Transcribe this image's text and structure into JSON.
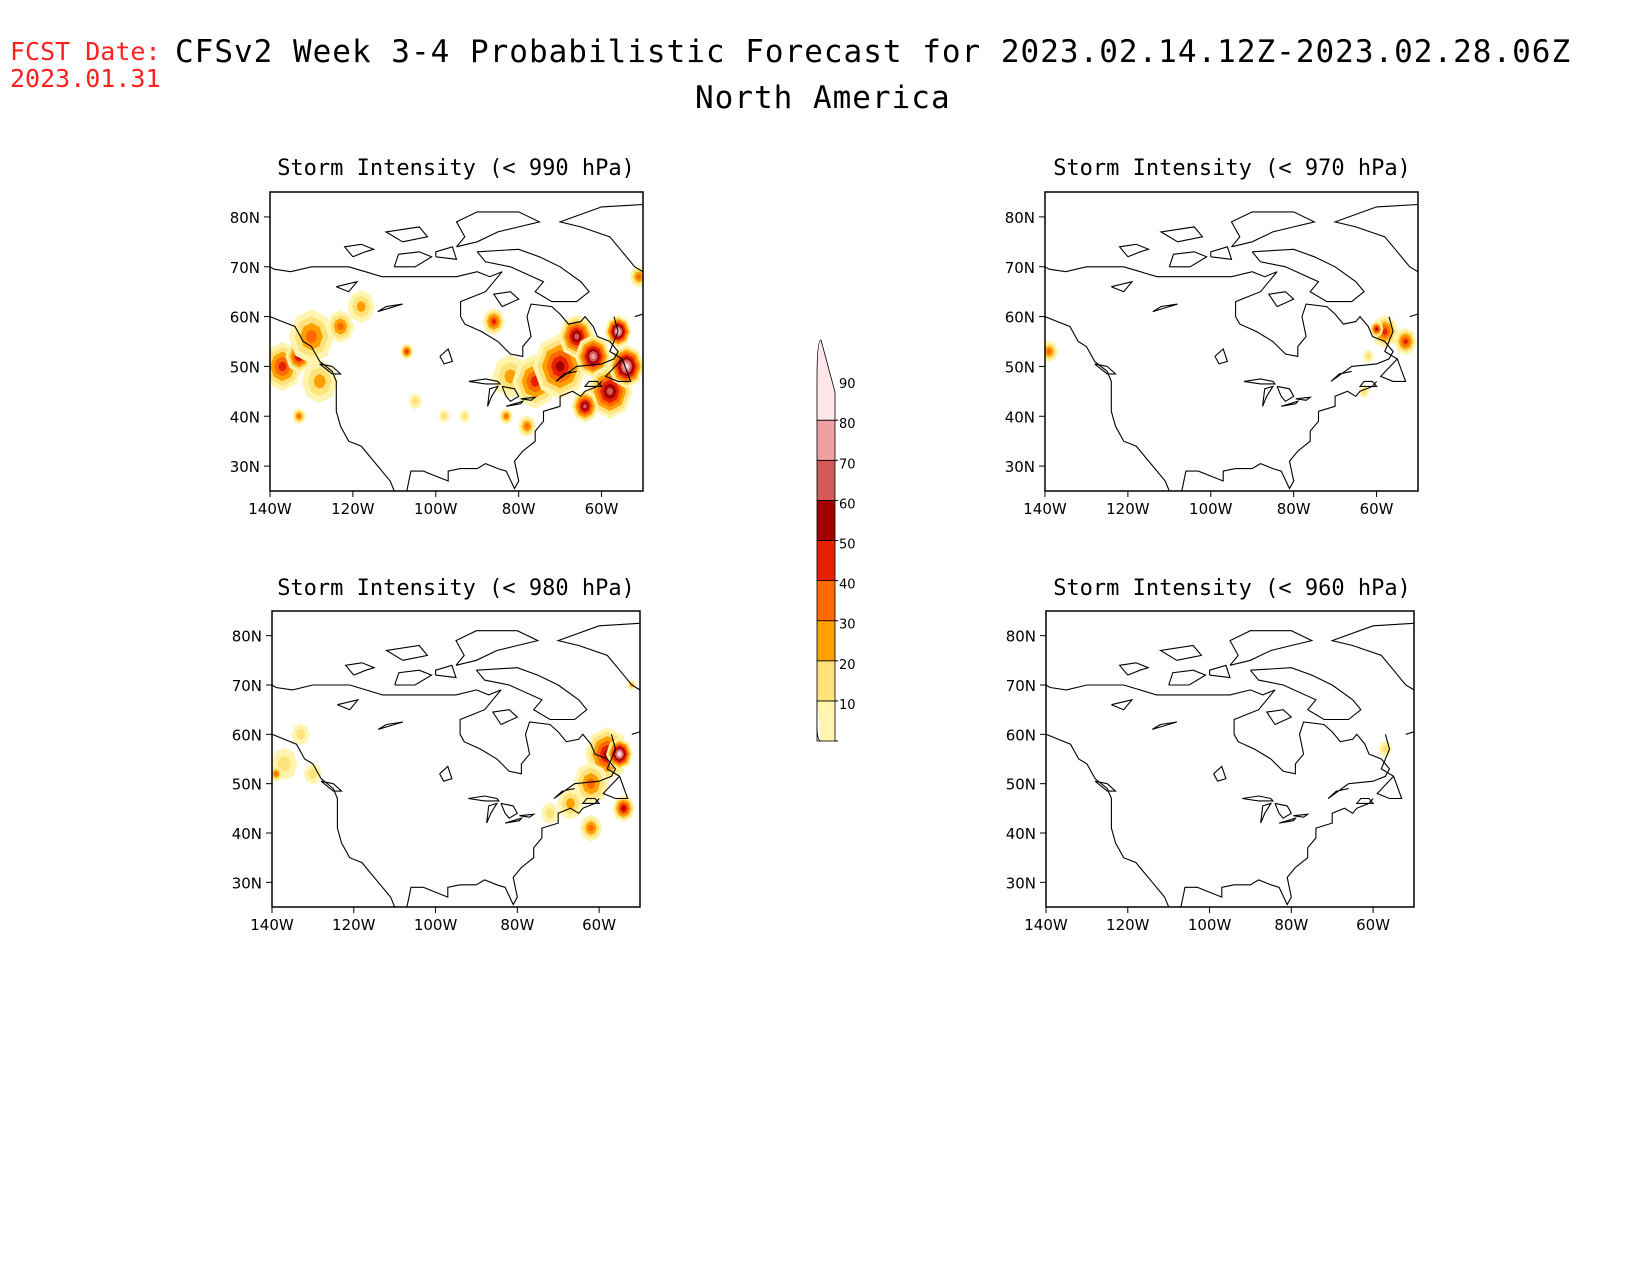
{
  "header": {
    "fcst_label": "FCST Date:",
    "fcst_date": "2023.01.31",
    "title": "CFSv2 Week 3-4 Probabilistic Forecast for 2023.02.14.12Z-2023.02.28.06Z",
    "subtitle": "North America"
  },
  "colorbar": {
    "levels": [
      "10",
      "20",
      "30",
      "40",
      "50",
      "60",
      "70",
      "80",
      "90"
    ],
    "colors": [
      "#fff5b0",
      "#ffe37a",
      "#ffa000",
      "#ff6a00",
      "#e62000",
      "#a50000",
      "#d45a5a",
      "#f0a0a5",
      "#ffe6e8"
    ]
  },
  "panels": [
    {
      "id": "p990",
      "title": "Storm Intensity (< 990 hPa)",
      "lat_ticks": [
        "80N",
        "70N",
        "60N",
        "50N",
        "40N",
        "30N"
      ],
      "lon_ticks": [
        "140W",
        "120W",
        "100W",
        "80W",
        "60W"
      ],
      "blobs": [
        {
          "lon": -137,
          "lat": 50,
          "r": 4.5,
          "level": 4
        },
        {
          "lon": -133,
          "lat": 52,
          "r": 3,
          "level": 5
        },
        {
          "lon": -130,
          "lat": 56,
          "r": 5,
          "level": 3
        },
        {
          "lon": -128,
          "lat": 47,
          "r": 4,
          "level": 2
        },
        {
          "lon": -123,
          "lat": 58,
          "r": 3,
          "level": 3
        },
        {
          "lon": -118,
          "lat": 62,
          "r": 3,
          "level": 2
        },
        {
          "lon": -133,
          "lat": 40,
          "r": 1.5,
          "level": 3
        },
        {
          "lon": -107,
          "lat": 53,
          "r": 1.5,
          "level": 4
        },
        {
          "lon": -105,
          "lat": 43,
          "r": 1.5,
          "level": 1
        },
        {
          "lon": -98,
          "lat": 40,
          "r": 1.2,
          "level": 1
        },
        {
          "lon": -93,
          "lat": 40,
          "r": 1.2,
          "level": 1
        },
        {
          "lon": -83,
          "lat": 40,
          "r": 1.5,
          "level": 3
        },
        {
          "lon": -82,
          "lat": 48,
          "r": 4,
          "level": 2
        },
        {
          "lon": -76,
          "lat": 47,
          "r": 5,
          "level": 4
        },
        {
          "lon": -70,
          "lat": 50,
          "r": 6,
          "level": 5
        },
        {
          "lon": -66,
          "lat": 56,
          "r": 4,
          "level": 6
        },
        {
          "lon": -62,
          "lat": 52,
          "r": 4,
          "level": 7
        },
        {
          "lon": -58,
          "lat": 45,
          "r": 5,
          "level": 6
        },
        {
          "lon": -54,
          "lat": 50,
          "r": 4,
          "level": 8
        },
        {
          "lon": -56,
          "lat": 57,
          "r": 3,
          "level": 8
        },
        {
          "lon": -64,
          "lat": 42,
          "r": 3,
          "level": 6
        },
        {
          "lon": -86,
          "lat": 59,
          "r": 2.5,
          "level": 4
        },
        {
          "lon": -78,
          "lat": 38,
          "r": 2,
          "level": 3
        },
        {
          "lon": -51,
          "lat": 68,
          "r": 2,
          "level": 3
        }
      ]
    },
    {
      "id": "p970",
      "title": "Storm Intensity (< 970 hPa)",
      "lat_ticks": [
        "80N",
        "70N",
        "60N",
        "50N",
        "40N",
        "30N"
      ],
      "lon_ticks": [
        "140W",
        "120W",
        "100W",
        "80W",
        "60W"
      ],
      "blobs": [
        {
          "lon": -139,
          "lat": 53,
          "r": 2,
          "level": 3
        },
        {
          "lon": -58,
          "lat": 57,
          "r": 3,
          "level": 4
        },
        {
          "lon": -60,
          "lat": 57.5,
          "r": 1.5,
          "level": 5
        },
        {
          "lon": -53,
          "lat": 55,
          "r": 2.5,
          "level": 4
        },
        {
          "lon": -62,
          "lat": 52,
          "r": 1.2,
          "level": 1
        },
        {
          "lon": -63,
          "lat": 45,
          "r": 1.2,
          "level": 1
        }
      ]
    },
    {
      "id": "p980",
      "title": "Storm Intensity (< 980 hPa)",
      "lat_ticks": [
        "80N",
        "70N",
        "60N",
        "50N",
        "40N",
        "30N"
      ],
      "lon_ticks": [
        "140W",
        "120W",
        "100W",
        "80W",
        "60W"
      ],
      "blobs": [
        {
          "lon": -137,
          "lat": 54,
          "r": 3,
          "level": 1
        },
        {
          "lon": -133,
          "lat": 60,
          "r": 2,
          "level": 1
        },
        {
          "lon": -130,
          "lat": 52,
          "r": 2,
          "level": 1
        },
        {
          "lon": -139,
          "lat": 52,
          "r": 1.5,
          "level": 3
        },
        {
          "lon": -58,
          "lat": 56,
          "r": 5,
          "level": 5
        },
        {
          "lon": -55,
          "lat": 56,
          "r": 3,
          "level": 8
        },
        {
          "lon": -62,
          "lat": 50,
          "r": 4,
          "level": 3
        },
        {
          "lon": -67,
          "lat": 46,
          "r": 3,
          "level": 2
        },
        {
          "lon": -62,
          "lat": 41,
          "r": 2.5,
          "level": 3
        },
        {
          "lon": -54,
          "lat": 45,
          "r": 2.5,
          "level": 5
        },
        {
          "lon": -72,
          "lat": 44,
          "r": 2,
          "level": 1
        },
        {
          "lon": -52,
          "lat": 70,
          "r": 1,
          "level": 2
        }
      ]
    },
    {
      "id": "p960",
      "title": "Storm Intensity (< 960 hPa)",
      "lat_ticks": [
        "80N",
        "70N",
        "60N",
        "50N",
        "40N",
        "30N"
      ],
      "lon_ticks": [
        "140W",
        "120W",
        "100W",
        "80W",
        "60W"
      ],
      "blobs": [
        {
          "lon": -57,
          "lat": 57,
          "r": 1.5,
          "level": 1
        }
      ]
    }
  ]
}
